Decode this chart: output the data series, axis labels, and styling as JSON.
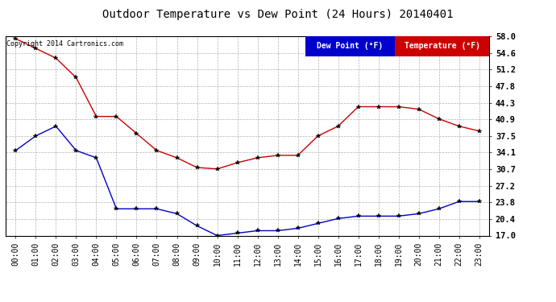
{
  "title": "Outdoor Temperature vs Dew Point (24 Hours) 20140401",
  "copyright": "Copyright 2014 Cartronics.com",
  "x_labels": [
    "00:00",
    "01:00",
    "02:00",
    "03:00",
    "04:00",
    "05:00",
    "06:00",
    "07:00",
    "08:00",
    "09:00",
    "10:00",
    "11:00",
    "12:00",
    "13:00",
    "14:00",
    "15:00",
    "16:00",
    "17:00",
    "18:00",
    "19:00",
    "20:00",
    "21:00",
    "22:00",
    "23:00"
  ],
  "y_ticks": [
    17.0,
    20.4,
    23.8,
    27.2,
    30.7,
    34.1,
    37.5,
    40.9,
    44.3,
    47.8,
    51.2,
    54.6,
    58.0
  ],
  "ylim": [
    17.0,
    58.0
  ],
  "temperature": [
    57.5,
    55.5,
    53.5,
    49.5,
    41.5,
    41.5,
    38.0,
    34.5,
    33.0,
    31.0,
    30.7,
    32.0,
    33.0,
    33.5,
    33.5,
    37.5,
    39.5,
    43.5,
    43.5,
    43.5,
    43.0,
    41.0,
    39.5,
    38.5
  ],
  "dew_point": [
    34.5,
    37.5,
    39.5,
    34.5,
    33.0,
    22.5,
    22.5,
    22.5,
    21.5,
    19.0,
    17.0,
    17.5,
    18.0,
    18.0,
    18.5,
    19.5,
    20.5,
    21.0,
    21.0,
    21.0,
    21.5,
    22.5,
    24.0,
    24.0
  ],
  "temp_color": "#cc0000",
  "dew_color": "#0000cc",
  "bg_color": "#ffffff",
  "grid_color": "#aaaaaa",
  "legend_dew_bg": "#0000cc",
  "legend_temp_bg": "#cc0000",
  "legend_text_color": "#ffffff",
  "title_fontsize": 10,
  "tick_fontsize": 7,
  "ytick_fontsize": 7.5
}
